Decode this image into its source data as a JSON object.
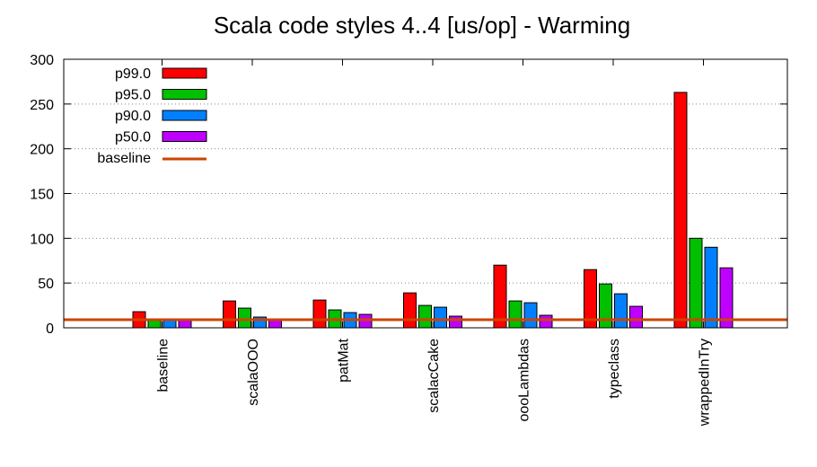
{
  "chart_data": {
    "type": "bar",
    "title": "Scala code styles 4..4 [us/op] - Warming",
    "xlabel": "",
    "ylabel": "",
    "ylim": [
      0,
      300
    ],
    "yticks": [
      0,
      50,
      100,
      150,
      200,
      250,
      300
    ],
    "grid": "horizontal dotted",
    "legend": "top-left",
    "categories": [
      "baseline",
      "scalaOOO",
      "patMat",
      "scalacCake",
      "oooLambdas",
      "typeclass",
      "wrappedInTry"
    ],
    "series": [
      {
        "name": "p99.0",
        "color": "#ff0000",
        "values": [
          18,
          30,
          31,
          39,
          70,
          65,
          263
        ]
      },
      {
        "name": "p95.0",
        "color": "#00c000",
        "values": [
          10,
          22,
          20,
          25,
          30,
          49,
          100
        ]
      },
      {
        "name": "p90.0",
        "color": "#0080ff",
        "values": [
          9,
          12,
          17,
          23,
          28,
          38,
          90
        ]
      },
      {
        "name": "p50.0",
        "color": "#c000ff",
        "values": [
          8,
          10,
          15,
          13,
          14,
          24,
          67
        ]
      }
    ],
    "baseline": {
      "name": "baseline",
      "value": 9,
      "color": "#cc4400"
    }
  }
}
